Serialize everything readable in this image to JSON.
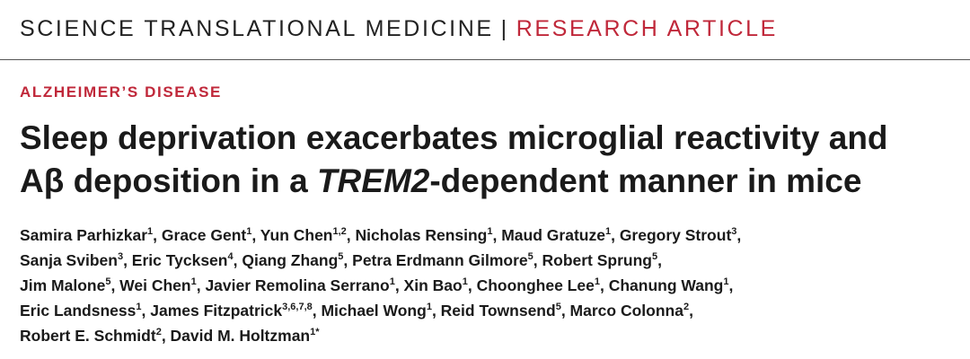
{
  "header": {
    "journal": "SCIENCE TRANSLATIONAL MEDICINE",
    "separator": "|",
    "article_type": "RESEARCH ARTICLE"
  },
  "category": "ALZHEIMER’S DISEASE",
  "title": {
    "line1": "Sleep deprivation exacerbates microglial reactivity and",
    "line2_pre": "Aβ deposition in a ",
    "line2_italic": "TREM2",
    "line2_post": "-dependent manner in mice"
  },
  "authors": [
    {
      "name": "Samira Parhizkar",
      "aff": "1"
    },
    {
      "name": "Grace Gent",
      "aff": "1"
    },
    {
      "name": "Yun Chen",
      "aff": "1,2"
    },
    {
      "name": "Nicholas Rensing",
      "aff": "1"
    },
    {
      "name": "Maud Gratuze",
      "aff": "1"
    },
    {
      "name": "Gregory Strout",
      "aff": "3"
    },
    {
      "name": "Sanja Sviben",
      "aff": "3"
    },
    {
      "name": "Eric Tycksen",
      "aff": "4"
    },
    {
      "name": "Qiang Zhang",
      "aff": "5"
    },
    {
      "name": "Petra Erdmann Gilmore",
      "aff": "5"
    },
    {
      "name": "Robert Sprung",
      "aff": "5"
    },
    {
      "name": "Jim Malone",
      "aff": "5"
    },
    {
      "name": "Wei Chen",
      "aff": "1"
    },
    {
      "name": "Javier Remolina Serrano",
      "aff": "1"
    },
    {
      "name": "Xin Bao",
      "aff": "1"
    },
    {
      "name": "Choonghee Lee",
      "aff": "1"
    },
    {
      "name": "Chanung Wang",
      "aff": "1"
    },
    {
      "name": "Eric Landsness",
      "aff": "1"
    },
    {
      "name": "James Fitzpatrick",
      "aff": "3,6,7,8"
    },
    {
      "name": "Michael Wong",
      "aff": "1"
    },
    {
      "name": "Reid Townsend",
      "aff": "5"
    },
    {
      "name": "Marco Colonna",
      "aff": "2"
    },
    {
      "name": "Robert E. Schmidt",
      "aff": "2"
    },
    {
      "name": "David M. Holtzman",
      "aff": "1*"
    }
  ]
}
